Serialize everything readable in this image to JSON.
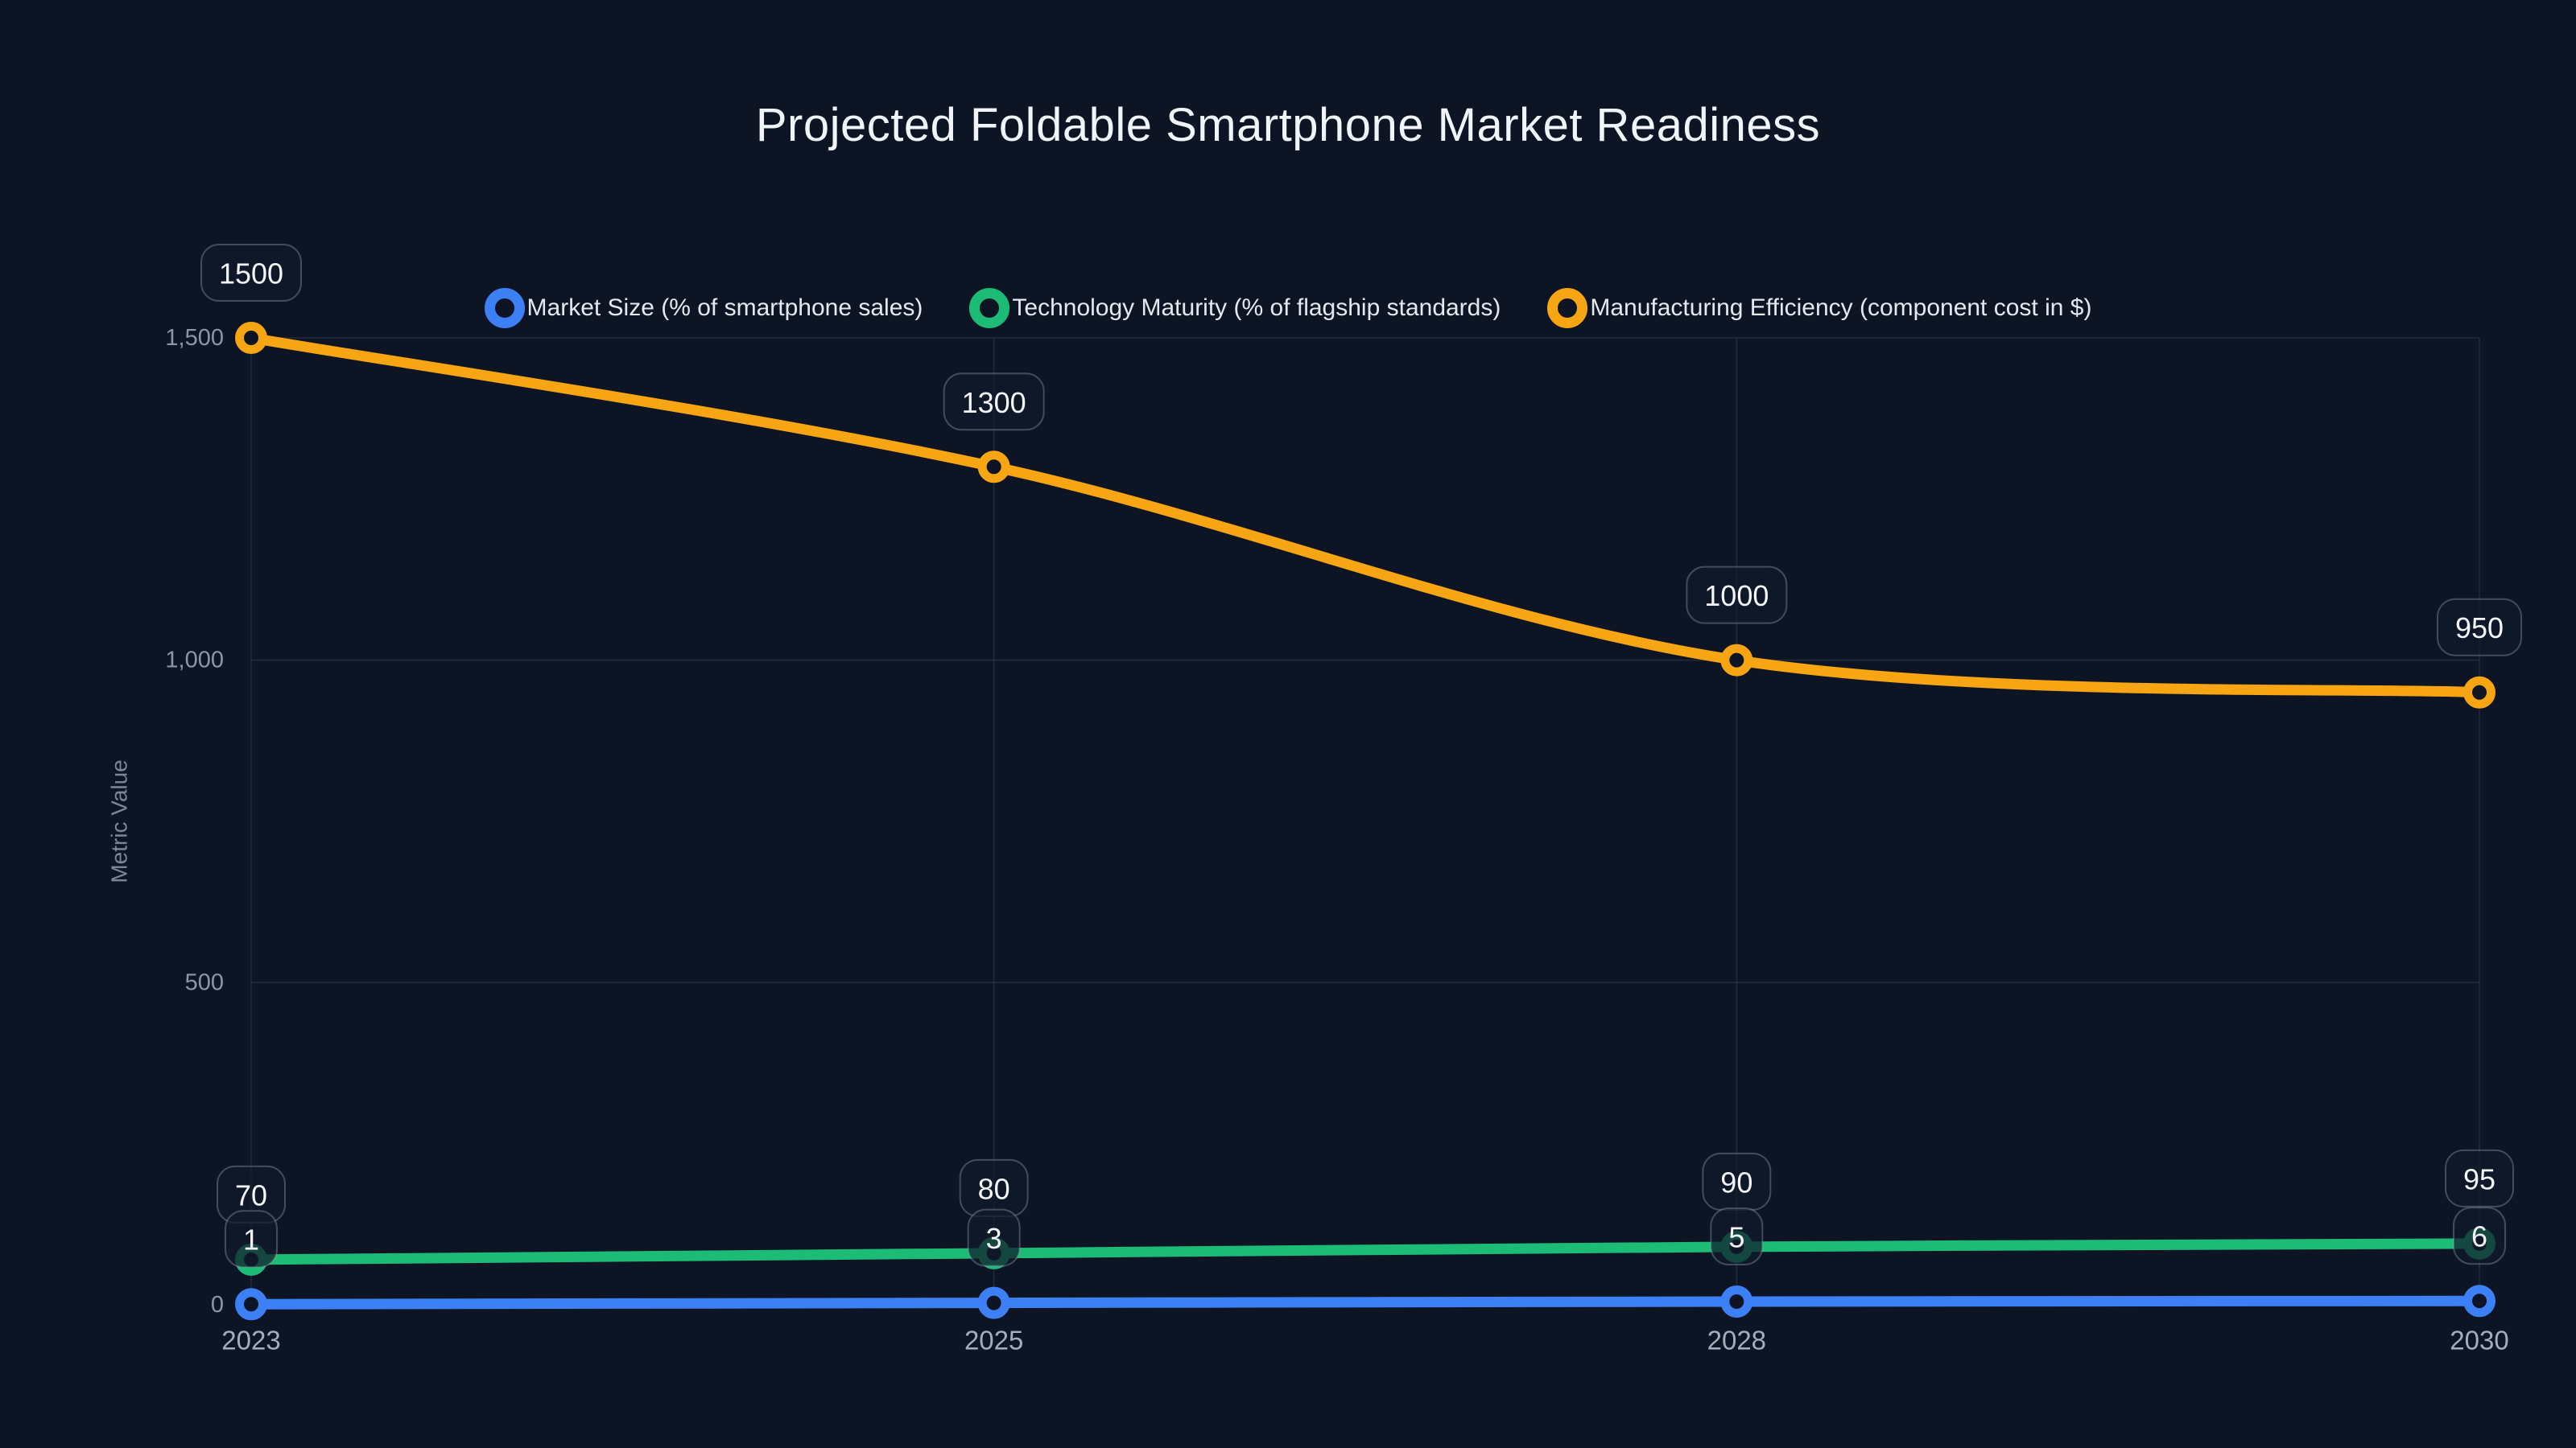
{
  "page": {
    "background_color": "#0d1524"
  },
  "chart_data": {
    "type": "line",
    "title": "Projected Foldable Smartphone Market Readiness",
    "xlabel": "",
    "ylabel": "Metric Value",
    "categories": [
      "2023",
      "2025",
      "2028",
      "2030"
    ],
    "series": [
      {
        "name": "Market Size (% of smartphone sales)",
        "color": "#3d80f6",
        "values": [
          1,
          3,
          5,
          6
        ],
        "data_labels": [
          "1",
          "3",
          "5",
          "6"
        ]
      },
      {
        "name": "Technology Maturity (% of flagship standards)",
        "color": "#1cbb76",
        "values": [
          70,
          80,
          90,
          95
        ],
        "data_labels": [
          "70",
          "80",
          "90",
          "95"
        ]
      },
      {
        "name": "Manufacturing Efficiency (component cost in $)",
        "color": "#f7a512",
        "values": [
          1500,
          1300,
          1000,
          950
        ],
        "data_labels": [
          "1500",
          "1300",
          "1000",
          "950"
        ]
      }
    ],
    "y_axis": {
      "min": 0,
      "max": 1500,
      "ticks": [
        {
          "value": 0,
          "label": "0"
        },
        {
          "value": 500,
          "label": "500"
        },
        {
          "value": 1000,
          "label": "1,000"
        },
        {
          "value": 1500,
          "label": "1,500"
        }
      ]
    },
    "legend_position": "top",
    "grid": true,
    "smooth": true,
    "data_label_boxes": true
  },
  "style_tokens": {
    "grid_color": "rgba(148,163,184,0.16)",
    "y_tick_color": "#8b96a9",
    "x_tick_color": "#a3aebd",
    "axis_title_color": "#7b8699",
    "label_box_fill": "rgba(17,26,43,0.72)",
    "label_box_border": "rgba(148,163,184,0.38)",
    "label_text_color": "#f4f6f9"
  }
}
